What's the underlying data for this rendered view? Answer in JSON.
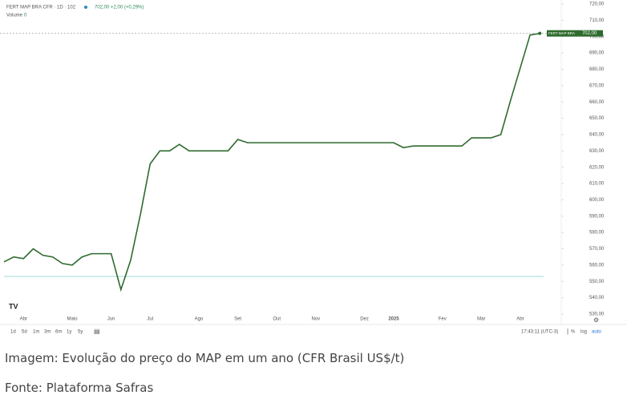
{
  "chart_data": {
    "type": "line",
    "legend_text": {
      "symbol": "FERT MAP BRA CFR · 1D · 102",
      "quote": "702,00 +2,00 (+0,29%)",
      "volume": "Volume",
      "volume_value": "0"
    },
    "price_tag": {
      "name": "FERT MAP BRA CFR",
      "label": "702,00"
    },
    "categories": [
      null,
      null,
      "Abr",
      null,
      null,
      null,
      null,
      "Maio",
      null,
      null,
      null,
      "Jun",
      null,
      null,
      null,
      "Jul",
      null,
      null,
      null,
      null,
      "Ago",
      null,
      null,
      null,
      "Set",
      null,
      null,
      null,
      "Out",
      null,
      null,
      null,
      "Nov",
      null,
      null,
      null,
      null,
      "Dez",
      null,
      null,
      "2025",
      null,
      null,
      null,
      null,
      "Fev",
      null,
      null,
      null,
      "Mar",
      null,
      null,
      null,
      "Abr",
      null,
      null
    ],
    "series": [
      {
        "name": "FERT MAP BRA CFR",
        "color": "#2e6b2e",
        "values": [
          562,
          565,
          564,
          570,
          566,
          565,
          561,
          560,
          565,
          567,
          567,
          567,
          545,
          563,
          591,
          622,
          630,
          630,
          634,
          630,
          630,
          630,
          630,
          630,
          637,
          635,
          635,
          635,
          635,
          635,
          635,
          635,
          635,
          635,
          635,
          635,
          635,
          635,
          635,
          635,
          635,
          632,
          633,
          633,
          633,
          633,
          633,
          633,
          638,
          638,
          638,
          640,
          661,
          681,
          701,
          702
        ]
      }
    ],
    "ylim": [
      530,
      720
    ],
    "yticks": [
      {
        "value": 720,
        "label": "720,00"
      },
      {
        "value": 710,
        "label": "710,00"
      },
      {
        "value": 700,
        "label": "700,00"
      },
      {
        "value": 690,
        "label": "690,00"
      },
      {
        "value": 680,
        "label": "680,00"
      },
      {
        "value": 670,
        "label": "670,00"
      },
      {
        "value": 660,
        "label": "660,00"
      },
      {
        "value": 650,
        "label": "650,00"
      },
      {
        "value": 640,
        "label": "640,00"
      },
      {
        "value": 630,
        "label": "630,00"
      },
      {
        "value": 620,
        "label": "620,00"
      },
      {
        "value": 610,
        "label": "610,00"
      },
      {
        "value": 600,
        "label": "600,00"
      },
      {
        "value": 590,
        "label": "590,00"
      },
      {
        "value": 580,
        "label": "580,00"
      },
      {
        "value": 570,
        "label": "570,00"
      },
      {
        "value": 560,
        "label": "560,00"
      },
      {
        "value": 550,
        "label": "550,00"
      },
      {
        "value": 540,
        "label": "540,00"
      },
      {
        "value": 530,
        "label": "530,00"
      }
    ],
    "grid": false
  },
  "toolbar": {
    "ranges": [
      "1d",
      "5d",
      "1m",
      "3m",
      "6m",
      "1y",
      "5y"
    ],
    "time": "17:43:11 (UTC-3)",
    "percent": "%",
    "log": "log",
    "auto": "auto"
  },
  "caption": {
    "image": "Imagem: Evolução do preço do MAP em um ano (CFR Brasil US$/t)",
    "source": "Fonte: Plataforma Safras"
  }
}
